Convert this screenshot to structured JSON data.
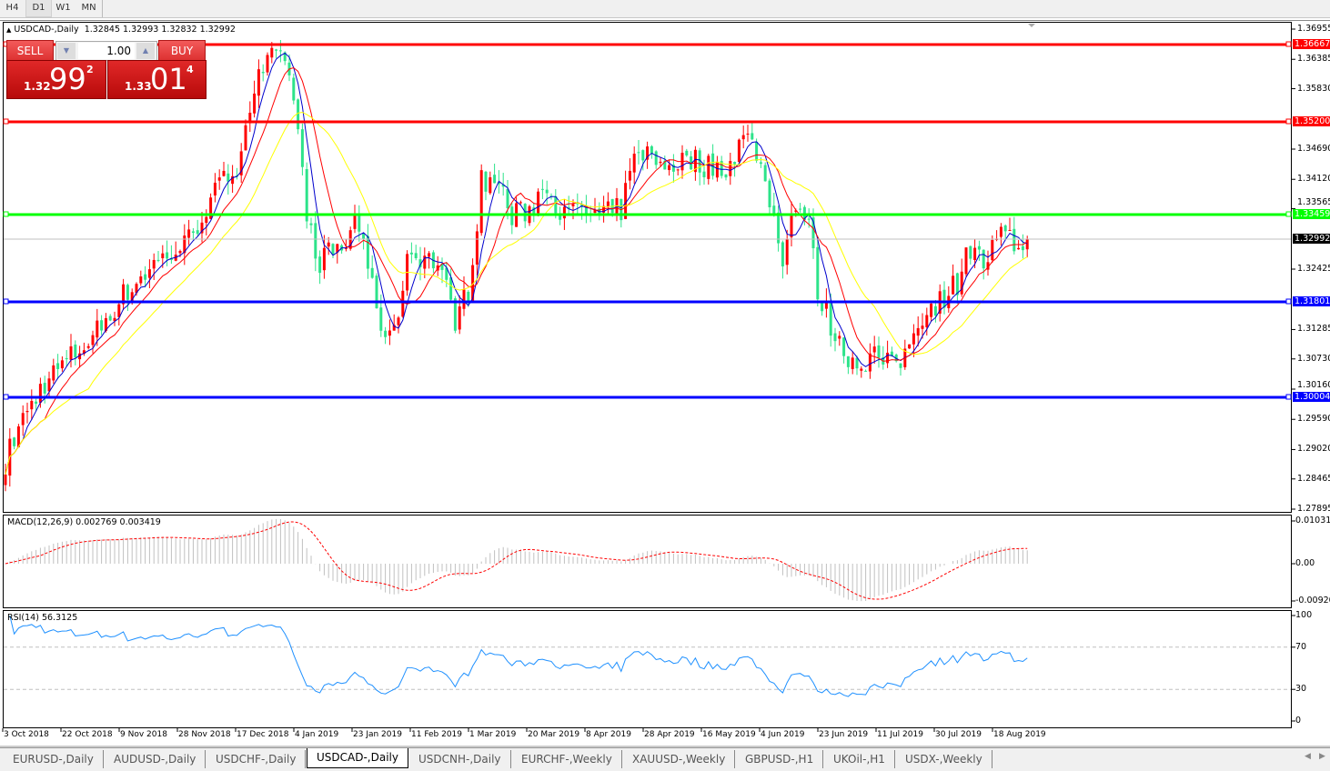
{
  "toolbar": {
    "timeframes": [
      "H4",
      "D1",
      "W1",
      "MN"
    ],
    "active": "D1"
  },
  "header": {
    "symbol": "USDCAD-,Daily",
    "ohlc": "1.32845 1.32993 1.32832 1.32992"
  },
  "trade_panel": {
    "sell_label": "SELL",
    "buy_label": "BUY",
    "lot": "1.00",
    "sell": {
      "prefix": "1.32",
      "big": "99",
      "pip": "2"
    },
    "buy": {
      "prefix": "1.33",
      "big": "01",
      "pip": "4"
    }
  },
  "price_axis": {
    "ticks": [
      "1.36955",
      "1.36385",
      "1.35830",
      "1.34690",
      "1.34120",
      "1.33565",
      "1.32425",
      "1.31285",
      "1.30730",
      "1.30160",
      "1.29590",
      "1.29020",
      "1.28465",
      "1.27895"
    ],
    "current_price": "1.32992"
  },
  "horizontal_lines": [
    {
      "price": "1.36667",
      "color": "#ff0000"
    },
    {
      "price": "1.35200",
      "color": "#ff0000"
    },
    {
      "price": "1.33459",
      "color": "#00ff00"
    },
    {
      "price": "1.31801",
      "color": "#0000ff"
    },
    {
      "price": "1.30004",
      "color": "#0000ff"
    }
  ],
  "macd": {
    "label": "MACD(12,26,9) 0.002769 0.003419",
    "ticks": [
      "0.010311",
      "0.00",
      "-0.009203"
    ],
    "signal_color": "#ff0000",
    "hist_color": "#c0c0c0"
  },
  "rsi": {
    "label": "RSI(14) 56.3125",
    "ticks": [
      "100",
      "70",
      "30",
      "0"
    ],
    "levels": [
      70,
      30
    ],
    "color": "#1e90ff"
  },
  "date_axis": [
    "3 Oct 2018",
    "22 Oct 2018",
    "9 Nov 2018",
    "28 Nov 2018",
    "17 Dec 2018",
    "4 Jan 2019",
    "23 Jan 2019",
    "11 Feb 2019",
    "1 Mar 2019",
    "20 Mar 2019",
    "8 Apr 2019",
    "28 Apr 2019",
    "16 May 2019",
    "4 Jun 2019",
    "23 Jun 2019",
    "11 Jul 2019",
    "30 Jul 2019",
    "18 Aug 2019"
  ],
  "bottom_tabs": [
    "EURUSD-,Daily",
    "AUDUSD-,Daily",
    "USDCHF-,Daily",
    "USDCAD-,Daily",
    "USDCNH-,Daily",
    "EURCHF-,Weekly",
    "XAUUSD-,Weekly",
    "GBPUSD-,H1",
    "UKOil-,H1",
    "USDX-,Weekly"
  ],
  "active_tab": "USDCAD-,Daily",
  "chart_data": {
    "type": "candlestick",
    "symbol": "USDCAD",
    "timeframe": "Daily",
    "ylim": [
      1.27895,
      1.36955
    ],
    "bull_color": "#ff0000",
    "bear_color": "#2de38a",
    "ma_colors": [
      "#0000cc",
      "#ff0000",
      "#ffff00"
    ],
    "close_anchors_by_bar": [
      [
        0,
        1.288
      ],
      [
        3,
        1.2944
      ],
      [
        9,
        1.303
      ],
      [
        20,
        1.3115
      ],
      [
        26,
        1.3184
      ],
      [
        34,
        1.3253
      ],
      [
        41,
        1.3287
      ],
      [
        47,
        1.3373
      ],
      [
        53,
        1.3442
      ],
      [
        57,
        1.3587
      ],
      [
        61,
        1.3639
      ],
      [
        65,
        1.3622
      ],
      [
        67,
        1.3493
      ],
      [
        69,
        1.3356
      ],
      [
        71,
        1.3253
      ],
      [
        74,
        1.327
      ],
      [
        78,
        1.3287
      ],
      [
        80,
        1.3339
      ],
      [
        82,
        1.3304
      ],
      [
        85,
        1.315
      ],
      [
        89,
        1.3115
      ],
      [
        92,
        1.327
      ],
      [
        95,
        1.327
      ],
      [
        99,
        1.3253
      ],
      [
        103,
        1.315
      ],
      [
        106,
        1.3201
      ],
      [
        109,
        1.3407
      ],
      [
        113,
        1.3407
      ],
      [
        116,
        1.3339
      ],
      [
        120,
        1.3356
      ],
      [
        124,
        1.3407
      ],
      [
        128,
        1.3339
      ],
      [
        132,
        1.3356
      ],
      [
        136,
        1.3339
      ],
      [
        141,
        1.3356
      ],
      [
        145,
        1.3476
      ],
      [
        149,
        1.3442
      ],
      [
        153,
        1.3442
      ],
      [
        157,
        1.345
      ],
      [
        162,
        1.3433
      ],
      [
        166,
        1.3442
      ],
      [
        169,
        1.3493
      ],
      [
        172,
        1.3467
      ],
      [
        175,
        1.3373
      ],
      [
        178,
        1.327
      ],
      [
        181,
        1.3373
      ],
      [
        184,
        1.3322
      ],
      [
        186,
        1.3201
      ],
      [
        191,
        1.3098
      ],
      [
        195,
        1.3064
      ],
      [
        199,
        1.3081
      ],
      [
        203,
        1.3055
      ],
      [
        206,
        1.3081
      ],
      [
        209,
        1.315
      ],
      [
        214,
        1.3184
      ],
      [
        218,
        1.3218
      ],
      [
        220,
        1.3287
      ],
      [
        224,
        1.3253
      ],
      [
        228,
        1.3304
      ],
      [
        231,
        1.3287
      ],
      [
        234,
        1.32992
      ]
    ]
  }
}
